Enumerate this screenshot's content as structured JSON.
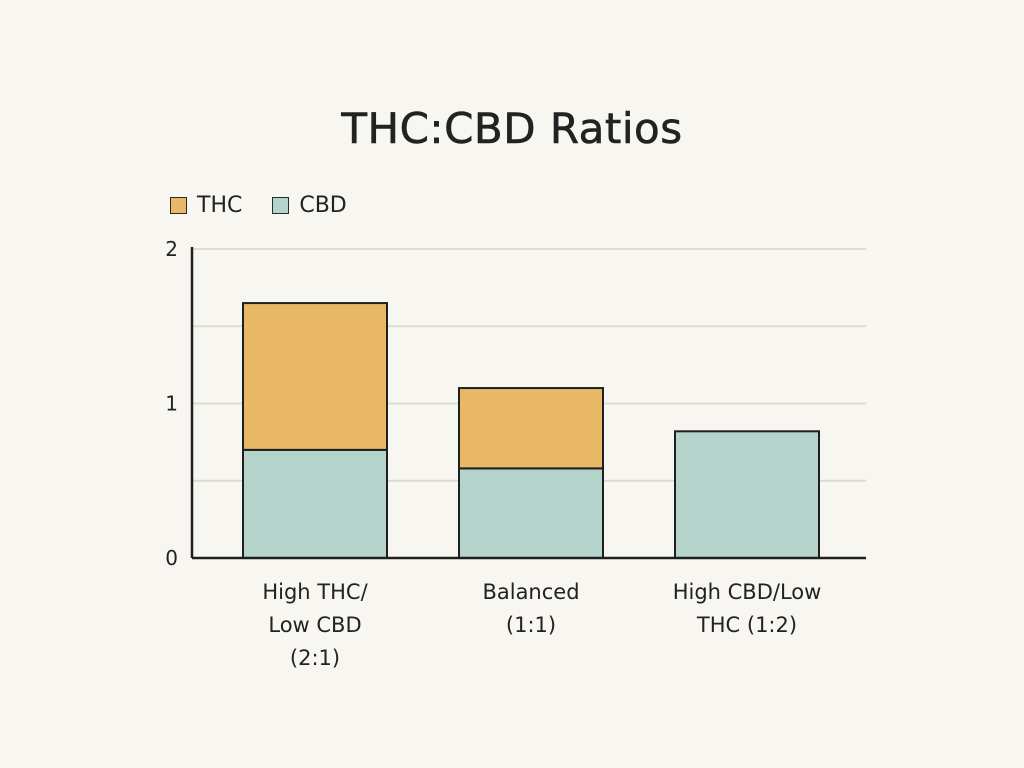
{
  "chart_data": {
    "type": "bar",
    "stacked": true,
    "title": "THC:CBD Ratios",
    "xlabel": "",
    "ylabel": "",
    "categories": [
      [
        "High THC/",
        "Low CBD",
        "(2:1)"
      ],
      [
        "Balanced",
        "(1:1)"
      ],
      [
        "High CBD/Low",
        "THC (1:2)"
      ]
    ],
    "series": [
      {
        "name": "CBD",
        "color": "#b3d3cb",
        "values": [
          0.7,
          0.58,
          0.82
        ]
      },
      {
        "name": "THC",
        "color": "#e9b867",
        "values": [
          0.95,
          0.52,
          0
        ]
      }
    ],
    "legend_order": [
      "THC",
      "CBD"
    ],
    "legend_position": "top-left",
    "ylim": [
      0,
      2
    ],
    "y_ticks": [
      {
        "value": 0,
        "label": "0"
      },
      {
        "value": 1,
        "label": "1"
      },
      {
        "value": 2,
        "label": "2"
      }
    ],
    "gridlines": [
      0.5,
      1,
      1.5,
      2
    ],
    "grid": true
  }
}
